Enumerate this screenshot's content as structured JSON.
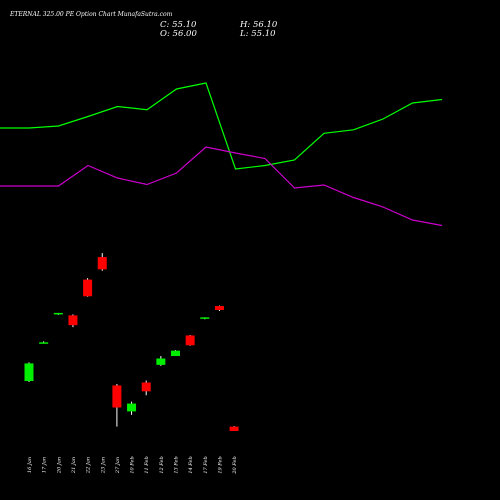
{
  "header": {
    "title": "ETERNAL 325.00 PE Option Chart MunafaSutra.com",
    "close": "C: 55.10",
    "high": "H: 56.10",
    "open": "O: 56.00",
    "low": "L: 55.10"
  },
  "colors": {
    "background": "#000000",
    "upper_line": "#00ff00",
    "lower_line": "#cc00cc",
    "bull_candle": "#00ee00",
    "bear_candle": "#ff0000",
    "wick": "#ffffff",
    "text": "#ffffff"
  },
  "chart_data": {
    "type": "candlestick",
    "title": "ETERNAL 325.00 PE Option Chart MunafaSutra.com",
    "categories": [
      "16 Jan",
      "17 Jan",
      "20 Jan",
      "21 Jan",
      "22 Jan",
      "23 Jan",
      "27 Jan",
      "10 Feb",
      "11 Feb",
      "12 Feb",
      "13 Feb",
      "14 Feb",
      "17 Feb",
      "19 Feb",
      "20 Feb"
    ],
    "x_tick_labels": [
      "16 Jan",
      "17 Jan",
      "20 Jan",
      "21 Jan",
      "22 Jan",
      "23 Jan",
      "27 Jan",
      "10 Feb",
      "11 Feb",
      "12 Feb",
      "13 Feb",
      "14 Feb",
      "17 Feb",
      "19 Feb",
      "20 Feb"
    ],
    "candles": [
      {
        "open": 65.3,
        "high": 69.1,
        "low": 65.1,
        "close": 68.9,
        "color": "green"
      },
      {
        "open": 73.2,
        "high": 73.4,
        "low": 73.0,
        "close": 73.2,
        "color": "green"
      },
      {
        "open": 79.0,
        "high": 79.2,
        "low": 78.8,
        "close": 79.2,
        "color": "green"
      },
      {
        "open": 78.7,
        "high": 78.9,
        "low": 76.3,
        "close": 76.7,
        "color": "red"
      },
      {
        "open": 86.0,
        "high": 86.3,
        "low": 82.5,
        "close": 82.6,
        "color": "red"
      },
      {
        "open": 90.6,
        "high": 91.4,
        "low": 87.8,
        "close": 88.1,
        "color": "red"
      },
      {
        "open": 64.4,
        "high": 64.7,
        "low": 56.0,
        "close": 59.9,
        "color": "red"
      },
      {
        "open": 59.1,
        "high": 61.1,
        "low": 58.4,
        "close": 60.7,
        "color": "green"
      },
      {
        "open": 65.0,
        "high": 65.4,
        "low": 62.4,
        "close": 63.2,
        "color": "red"
      },
      {
        "open": 68.6,
        "high": 70.4,
        "low": 68.4,
        "close": 69.9,
        "color": "green"
      },
      {
        "open": 70.4,
        "high": 71.6,
        "low": 70.4,
        "close": 71.5,
        "color": "green"
      },
      {
        "open": 74.6,
        "high": 74.7,
        "low": 72.5,
        "close": 72.6,
        "color": "red"
      },
      {
        "open": 78.1,
        "high": 78.3,
        "low": 77.9,
        "close": 78.3,
        "color": "green"
      },
      {
        "open": 80.6,
        "high": 80.7,
        "low": 79.6,
        "close": 79.8,
        "color": "red"
      },
      {
        "open": 56.0,
        "high": 56.1,
        "low": 55.1,
        "close": 55.1,
        "color": "red"
      }
    ],
    "series": [
      {
        "values": [
          0.0,
          2.0,
          11.5,
          21.5,
          18.3,
          39.0,
          45.0,
          -41.0,
          -37.5,
          -32.0,
          -5.3,
          -1.8,
          9.0,
          25.0,
          28.5
        ]
      },
      {
        "values": [
          -58.0,
          -58.0,
          -37.5,
          -50.0,
          -56.5,
          -45.0,
          -19.0,
          -25.0,
          -30.5,
          -60.0,
          -57.0,
          -69.5,
          -79.0,
          -92.0,
          -97.5
        ]
      }
    ],
    "grid": false,
    "legend": "none"
  }
}
